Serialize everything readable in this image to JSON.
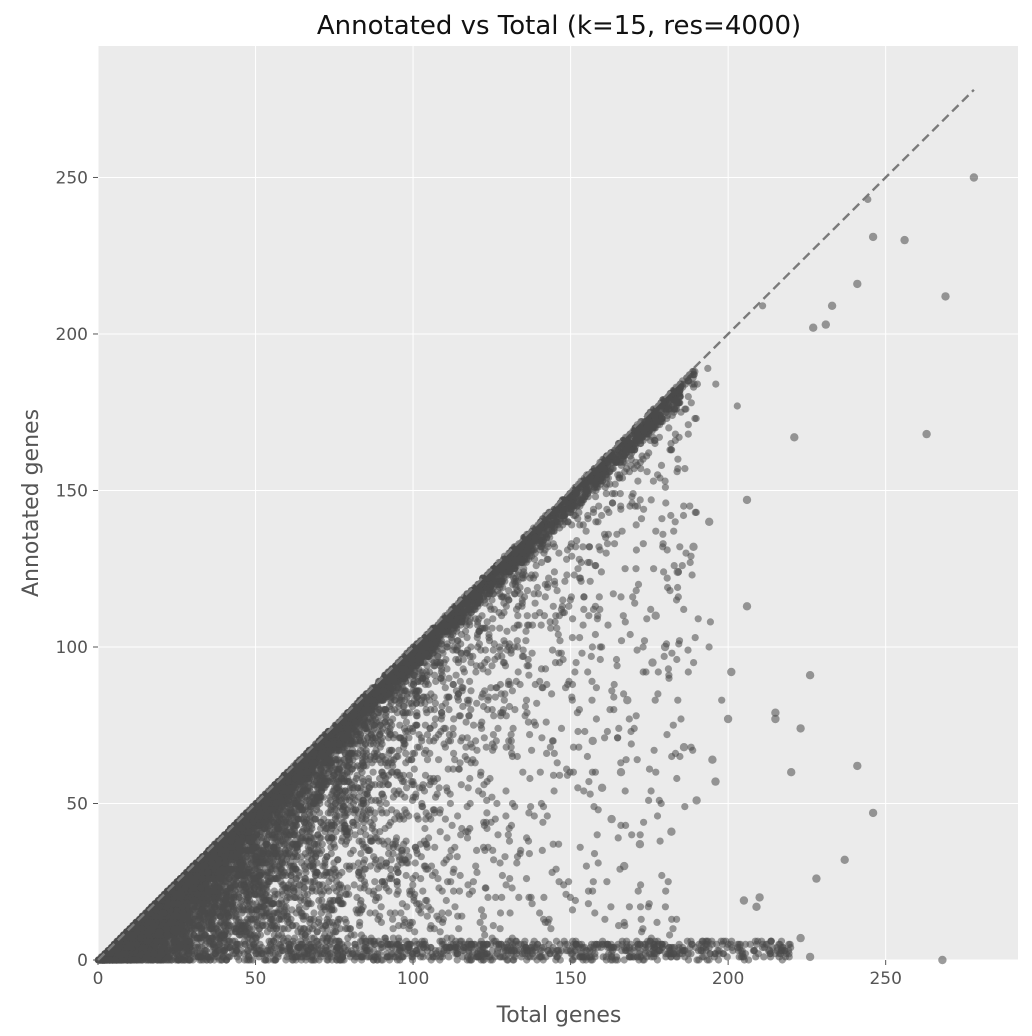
{
  "chart_data": {
    "type": "scatter",
    "title": "Annotated vs Total (k=15, res=4000)",
    "xlabel": "Total genes",
    "ylabel": "Annotated genes",
    "xlim": [
      0,
      292
    ],
    "ylim": [
      0,
      292
    ],
    "xticks": [
      0,
      50,
      100,
      150,
      200,
      250
    ],
    "yticks": [
      0,
      50,
      100,
      150,
      200,
      250
    ],
    "grid": true,
    "legend": "none",
    "colors": {
      "background": "#EBEBEB",
      "grid": "#FFFFFF",
      "points": "#4A4A4A",
      "reference_line": "#7A7A7A"
    },
    "reference_line": {
      "x": [
        0,
        278
      ],
      "y": [
        0,
        278
      ],
      "style": "dashed",
      "label": ""
    },
    "series": [
      {
        "name": "",
        "x": [
          278,
          246,
          256,
          269,
          241,
          263,
          233,
          231,
          227,
          221,
          206,
          206,
          226,
          215,
          215,
          223,
          241,
          246,
          237,
          228,
          223,
          213,
          210,
          209,
          205,
          201,
          226,
          220,
          268,
          200,
          195,
          196,
          190,
          186,
          182,
          172,
          168,
          166,
          194,
          189,
          184,
          180,
          177,
          176,
          157,
          160,
          163,
          167
        ],
        "y": [
          250,
          231,
          230,
          212,
          216,
          168,
          209,
          203,
          202,
          167,
          147,
          113,
          91,
          79,
          77,
          74,
          62,
          47,
          32,
          26,
          7,
          3,
          20,
          17,
          19,
          92,
          1,
          60,
          0,
          77,
          64,
          57,
          51,
          68,
          41,
          37,
          83,
          60,
          140,
          132,
          124,
          100,
          110,
          95,
          70,
          55,
          45,
          30
        ]
      }
    ],
    "point_cloud": {
      "n": 12000,
      "x_range": [
        0,
        276
      ],
      "y_max_equals_x": true,
      "density": "highest near origin and along y=x; sparse scatter toward lower right"
    }
  }
}
